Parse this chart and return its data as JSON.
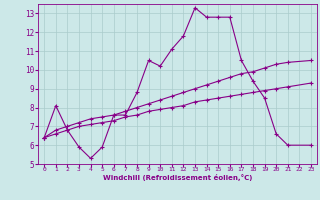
{
  "xlabel": "Windchill (Refroidissement éolien,°C)",
  "xlim": [
    -0.5,
    23.5
  ],
  "ylim": [
    5,
    13.5
  ],
  "xticks": [
    0,
    1,
    2,
    3,
    4,
    5,
    6,
    7,
    8,
    9,
    10,
    11,
    12,
    13,
    14,
    15,
    16,
    17,
    18,
    19,
    20,
    21,
    22,
    23
  ],
  "yticks": [
    5,
    6,
    7,
    8,
    9,
    10,
    11,
    12,
    13
  ],
  "bg_color": "#cce8e8",
  "line_color": "#880088",
  "grid_color": "#aacccc",
  "line1_x": [
    0,
    1,
    2,
    3,
    4,
    5,
    6,
    7,
    8,
    9,
    10,
    11,
    12,
    13,
    14,
    15,
    16,
    17,
    18,
    19,
    20,
    21,
    23
  ],
  "line1_y": [
    6.4,
    8.1,
    6.8,
    5.9,
    5.3,
    5.9,
    7.6,
    7.6,
    8.8,
    10.5,
    10.2,
    11.1,
    11.8,
    13.3,
    12.8,
    12.8,
    12.8,
    10.5,
    9.4,
    8.5,
    6.6,
    6.0,
    6.0
  ],
  "line2_x": [
    0,
    1,
    2,
    3,
    4,
    5,
    6,
    7,
    8,
    9,
    10,
    11,
    12,
    13,
    14,
    15,
    16,
    17,
    18,
    19,
    20,
    21,
    23
  ],
  "line2_y": [
    6.4,
    6.8,
    7.0,
    7.2,
    7.4,
    7.5,
    7.6,
    7.8,
    8.0,
    8.2,
    8.4,
    8.6,
    8.8,
    9.0,
    9.2,
    9.4,
    9.6,
    9.8,
    9.9,
    10.1,
    10.3,
    10.4,
    10.5
  ],
  "line3_x": [
    0,
    1,
    2,
    3,
    4,
    5,
    6,
    7,
    8,
    9,
    10,
    11,
    12,
    13,
    14,
    15,
    16,
    17,
    18,
    19,
    20,
    21,
    23
  ],
  "line3_y": [
    6.4,
    6.6,
    6.8,
    7.0,
    7.1,
    7.2,
    7.3,
    7.5,
    7.6,
    7.8,
    7.9,
    8.0,
    8.1,
    8.3,
    8.4,
    8.5,
    8.6,
    8.7,
    8.8,
    8.9,
    9.0,
    9.1,
    9.3
  ]
}
